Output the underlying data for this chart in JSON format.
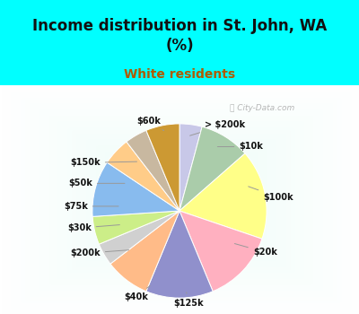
{
  "title": "Income distribution in St. John, WA\n(%)",
  "subtitle": "White residents",
  "title_color": "#111111",
  "subtitle_color": "#b05a00",
  "bg_top_color": "#00ffff",
  "labels": [
    "> $200k",
    "$10k",
    "$100k",
    "$20k",
    "$125k",
    "$40k",
    "$200k",
    "$30k",
    "$75k",
    "$50k",
    "$150k",
    "$60k"
  ],
  "values": [
    4,
    9,
    16,
    13,
    12,
    8,
    4,
    5,
    10,
    5,
    4,
    6
  ],
  "colors": [
    "#c8c8e8",
    "#aaccaa",
    "#ffff88",
    "#ffb0c0",
    "#9090cc",
    "#ffbb88",
    "#d0d0d0",
    "#ccee88",
    "#88bbee",
    "#ffcc88",
    "#c8b8a0",
    "#cc9933"
  ],
  "startangle": 90,
  "watermark": "  City-Data.com"
}
